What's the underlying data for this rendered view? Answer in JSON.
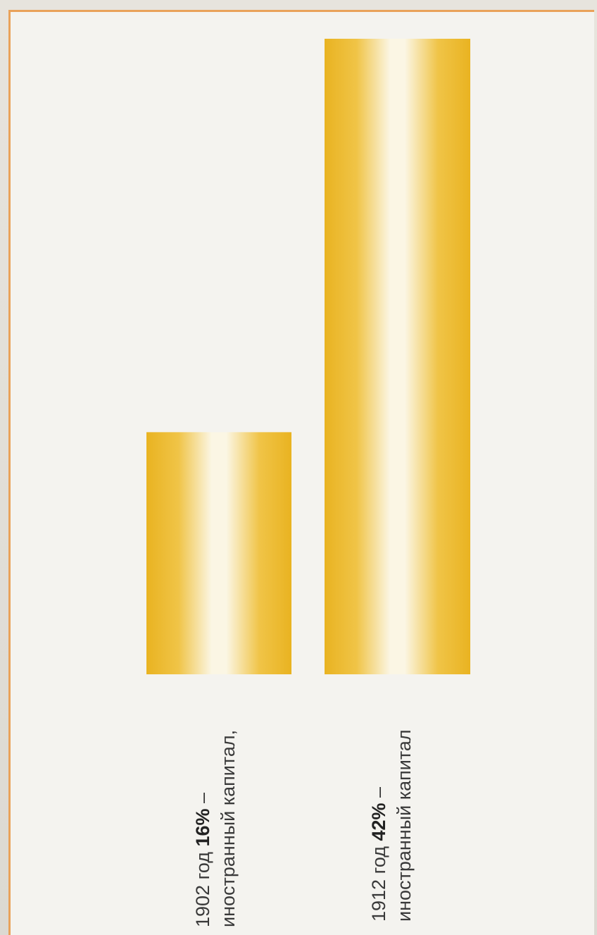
{
  "chart_data": {
    "type": "bar",
    "orientation": "vertical",
    "categories": [
      "1902 год",
      "1912 год"
    ],
    "values": [
      16,
      42
    ],
    "value_unit": "%",
    "ylim": [
      0,
      42
    ],
    "bar_color": "#e9b321",
    "bar_highlight": "#fbf6e4",
    "labels": [
      {
        "line1_prefix": "1902 год ",
        "value_text": "16%",
        "line1_suffix": " –",
        "line2": "иностранный капитал,"
      },
      {
        "line1_prefix": "1912 год ",
        "value_text": "42%",
        "line1_suffix": " –",
        "line2": "иностранный капитал"
      }
    ],
    "title": "",
    "xlabel": "",
    "ylabel": "",
    "grid": false
  },
  "colors": {
    "frame_border": "#e9a25a",
    "background": "#f4f3ef"
  }
}
